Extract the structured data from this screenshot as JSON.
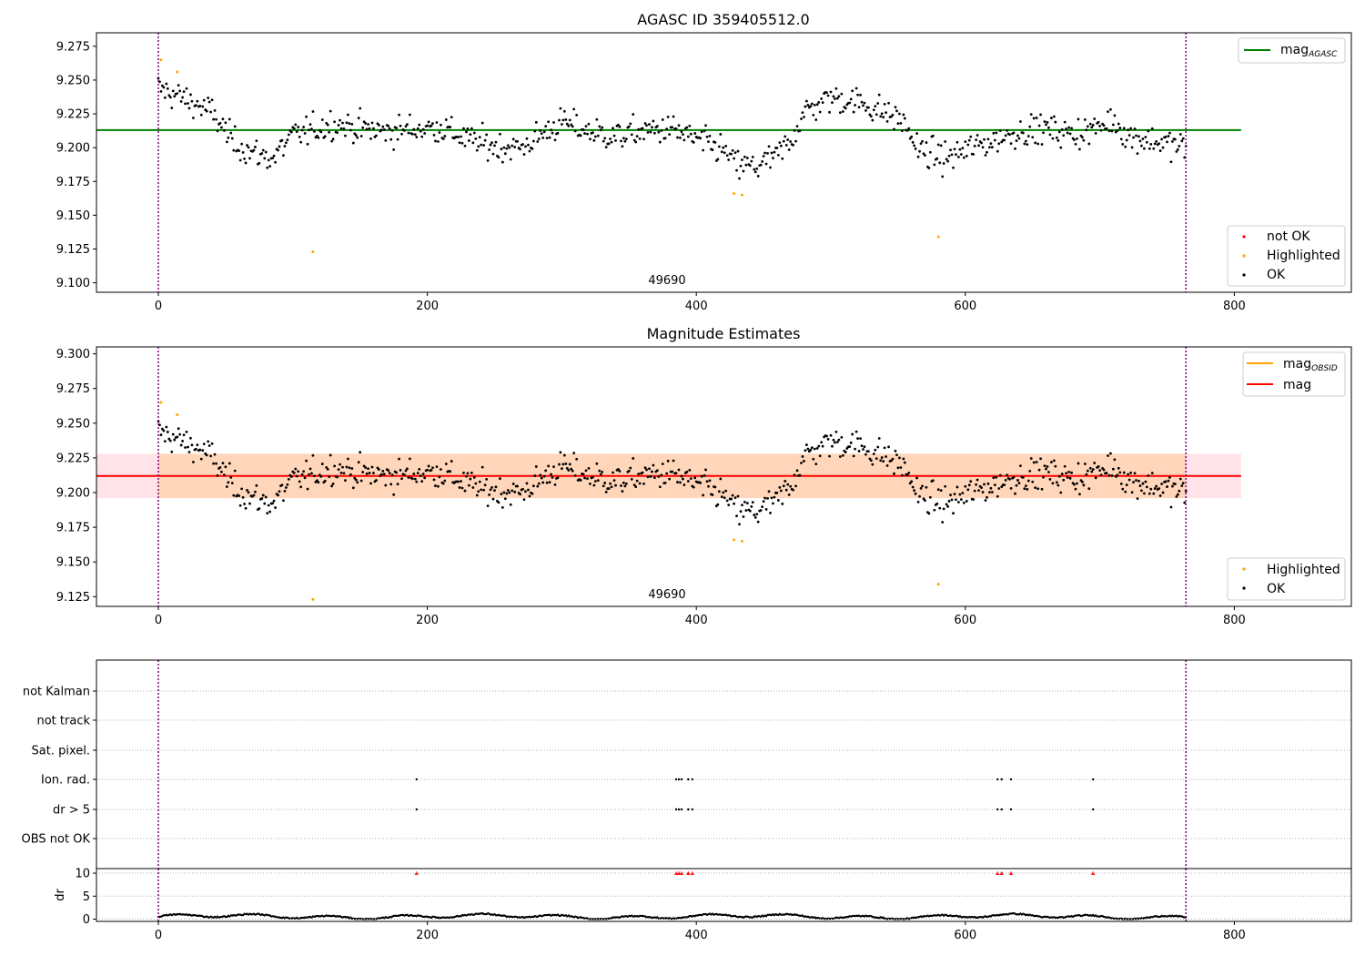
{
  "chart_data": [
    {
      "type": "scatter",
      "title": "AGASC ID 359405512.0",
      "ylim": [
        9.093,
        9.285
      ],
      "y_ticks": [
        "9.100",
        "9.125",
        "9.150",
        "9.175",
        "9.200",
        "9.225",
        "9.250",
        "9.275"
      ],
      "x_tick_labels": [
        "0",
        "200",
        "400",
        "600",
        "800"
      ],
      "annotation": "49690",
      "mag_agasc": 9.213,
      "vlines": [
        0,
        764
      ],
      "legend_lines": [
        {
          "label": "mag",
          "subscript": "AGASC",
          "color": "#008000"
        }
      ],
      "legend_points": [
        {
          "label": "not OK",
          "color": "#ff0000"
        },
        {
          "label": "Highlighted",
          "color": "#ffa500"
        },
        {
          "label": "OK",
          "color": "#000000"
        }
      ],
      "highlighted": [
        [
          2,
          9.265
        ],
        [
          14,
          9.256
        ],
        [
          115,
          9.123
        ],
        [
          428,
          9.166
        ],
        [
          434,
          9.165
        ],
        [
          580,
          9.134
        ]
      ],
      "profile": [
        [
          0,
          9.244
        ],
        [
          20,
          9.236
        ],
        [
          40,
          9.226
        ],
        [
          55,
          9.205
        ],
        [
          70,
          9.196
        ],
        [
          85,
          9.192
        ],
        [
          100,
          9.209
        ],
        [
          115,
          9.213
        ],
        [
          130,
          9.218
        ],
        [
          150,
          9.214
        ],
        [
          170,
          9.212
        ],
        [
          190,
          9.214
        ],
        [
          210,
          9.215
        ],
        [
          230,
          9.206
        ],
        [
          250,
          9.201
        ],
        [
          270,
          9.2
        ],
        [
          290,
          9.213
        ],
        [
          300,
          9.219
        ],
        [
          320,
          9.212
        ],
        [
          340,
          9.208
        ],
        [
          360,
          9.212
        ],
        [
          380,
          9.214
        ],
        [
          400,
          9.206
        ],
        [
          420,
          9.198
        ],
        [
          430,
          9.187
        ],
        [
          445,
          9.186
        ],
        [
          460,
          9.194
        ],
        [
          470,
          9.205
        ],
        [
          480,
          9.226
        ],
        [
          500,
          9.237
        ],
        [
          520,
          9.234
        ],
        [
          545,
          9.224
        ],
        [
          555,
          9.218
        ],
        [
          565,
          9.198
        ],
        [
          585,
          9.192
        ],
        [
          600,
          9.198
        ],
        [
          620,
          9.205
        ],
        [
          640,
          9.212
        ],
        [
          660,
          9.214
        ],
        [
          680,
          9.21
        ],
        [
          700,
          9.215
        ],
        [
          710,
          9.221
        ],
        [
          720,
          9.209
        ],
        [
          740,
          9.205
        ],
        [
          764,
          9.2
        ]
      ]
    },
    {
      "type": "scatter",
      "title": "Magnitude Estimates",
      "ylim": [
        9.118,
        9.305
      ],
      "y_ticks": [
        "9.125",
        "9.150",
        "9.175",
        "9.200",
        "9.225",
        "9.250",
        "9.275",
        "9.300"
      ],
      "x_tick_labels": [
        "0",
        "200",
        "400",
        "600",
        "800"
      ],
      "annotation": "49690",
      "mag": 9.212,
      "band_outer": [
        9.196,
        9.228
      ],
      "band_inner": [
        9.196,
        9.228
      ],
      "vlines": [
        0,
        764
      ],
      "legend_lines": [
        {
          "label": "mag",
          "subscript": "OBSID",
          "color": "#ffa500"
        },
        {
          "label": "mag",
          "subscript": "",
          "color": "#ff0000"
        }
      ],
      "legend_points": [
        {
          "label": "Highlighted",
          "color": "#ffa500"
        },
        {
          "label": "OK",
          "color": "#000000"
        }
      ]
    },
    {
      "type": "scatter",
      "flag_labels": [
        "not Kalman",
        "not track",
        "Sat. pixel.",
        "Ion. rad.",
        "dr > 5",
        "OBS not OK"
      ],
      "flag_points_ion": [
        192,
        385,
        387,
        389,
        394,
        397,
        624,
        627,
        634,
        695
      ],
      "flag_points_dr5": [
        192,
        385,
        387,
        389,
        394,
        397,
        624,
        627,
        634,
        695
      ],
      "dr_ylabel": "dr",
      "dr_ylim": [
        -0.5,
        11
      ],
      "dr_ticks": [
        "0",
        "5",
        "10"
      ],
      "dr_high": [
        192,
        385,
        387,
        389,
        394,
        397,
        624,
        627,
        634,
        695
      ],
      "x_tick_labels": [
        "0",
        "200",
        "400",
        "600",
        "800"
      ],
      "vlines": [
        0,
        764
      ]
    }
  ]
}
